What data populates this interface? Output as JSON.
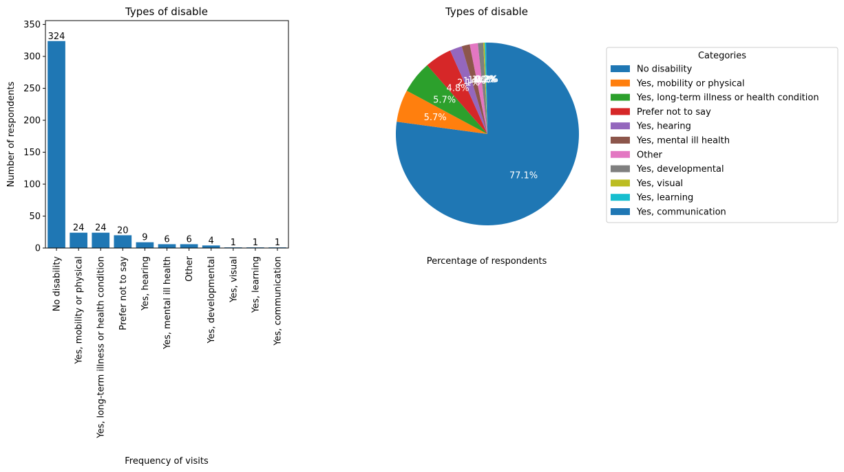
{
  "chart_data": [
    {
      "type": "bar",
      "title": "Types of disable",
      "xlabel": "Frequency of visits",
      "ylabel": "Number of respondents",
      "ylim": [
        0,
        356
      ],
      "yticks": [
        0,
        50,
        100,
        150,
        200,
        250,
        300,
        350
      ],
      "grid": false,
      "categories": [
        "No disability",
        "Yes, mobility or physical",
        "Yes, long-term illness or health condition",
        "Prefer not to say",
        "Yes, hearing",
        "Yes, mental ill health",
        "Other",
        "Yes, developmental",
        "Yes, visual",
        "Yes, learning",
        "Yes, communication"
      ],
      "values": [
        324,
        24,
        24,
        20,
        9,
        6,
        6,
        4,
        1,
        1,
        1
      ],
      "data_labels": [
        "324",
        "24",
        "24",
        "20",
        "9",
        "6",
        "6",
        "4",
        "1",
        "1",
        "1"
      ],
      "color": "#1f77b4"
    },
    {
      "type": "pie",
      "title": "Types of disable",
      "xlabel": "Percentage of respondents",
      "start_angle_deg": 90,
      "direction": "clockwise",
      "categories": [
        "No disability",
        "Yes, mobility or physical",
        "Yes, long-term illness or health condition",
        "Prefer not to say",
        "Yes, hearing",
        "Yes, mental ill health",
        "Other",
        "Yes, developmental",
        "Yes, visual",
        "Yes, learning",
        "Yes, communication"
      ],
      "values": [
        324,
        24,
        24,
        20,
        9,
        6,
        6,
        4,
        1,
        1,
        1
      ],
      "percent_labels": [
        "77.1%",
        "5.7%",
        "5.7%",
        "4.8%",
        "2.1%",
        "1.4%",
        "1.4%",
        "1.0%",
        "0.2%",
        "0.2%",
        "0.2%"
      ],
      "colors": [
        "#1f77b4",
        "#ff7f0e",
        "#2ca02c",
        "#d62728",
        "#9467bd",
        "#8c564b",
        "#e377c2",
        "#7f7f7f",
        "#bcbd22",
        "#17becf",
        "#1f77b4"
      ],
      "legend": {
        "title": "Categories",
        "placement": "right",
        "entries": [
          "No disability",
          "Yes, mobility or physical",
          "Yes, long-term illness or health condition",
          "Prefer not to say",
          "Yes, hearing",
          "Yes, mental ill health",
          "Other",
          "Yes, developmental",
          "Yes, visual",
          "Yes, learning",
          "Yes, communication"
        ]
      }
    }
  ]
}
